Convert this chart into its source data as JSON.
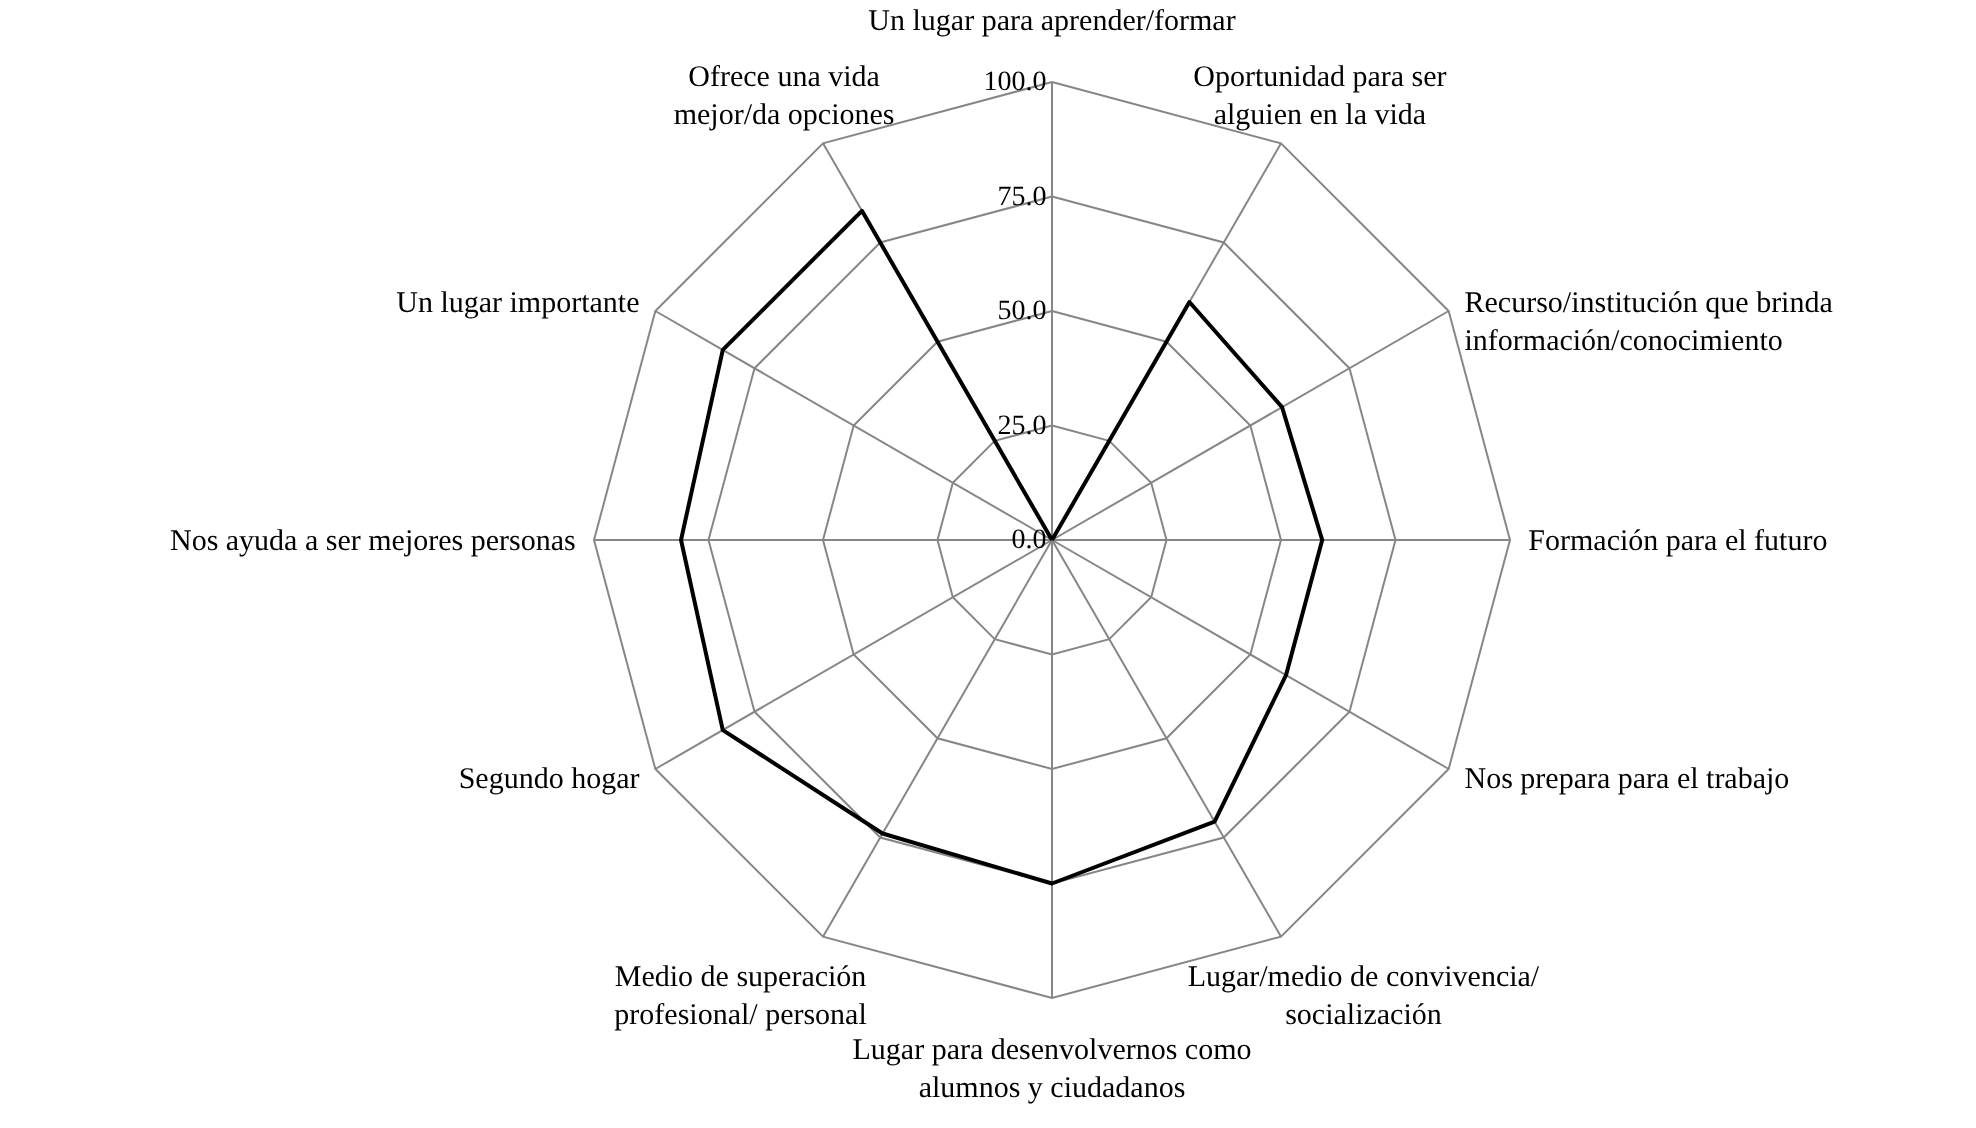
{
  "chart_data": {
    "type": "radar",
    "categories": [
      "Un lugar para aprender/formar",
      "Oportunidad para ser alguien en la vida",
      "Recurso/institución que brinda información/conocimiento",
      "Formación para el futuro",
      "Nos prepara para el trabajo",
      "Lugar/medio de convivencia/ socialización",
      "Lugar para desenvolvernos como alumnos y ciudadanos",
      "Medio de superación profesional/ personal",
      "Segundo hogar",
      "Nos ayuda a ser mejores personas",
      "Un lugar importante",
      "Ofrece una vida mejor/da opciones"
    ],
    "series": [
      {
        "color": "#000000",
        "values": [
          0,
          60,
          58,
          59,
          59,
          71,
          75,
          74,
          83,
          81,
          83,
          83
        ]
      }
    ],
    "ylim": [
      0,
      100
    ],
    "yticks": [
      {
        "value": 0,
        "label": "0.0"
      },
      {
        "value": 25,
        "label": "25.0"
      },
      {
        "value": 50,
        "label": "50.0"
      },
      {
        "value": 75,
        "label": "75.0"
      },
      {
        "value": 100,
        "label": "100.0"
      }
    ],
    "grid": true
  }
}
